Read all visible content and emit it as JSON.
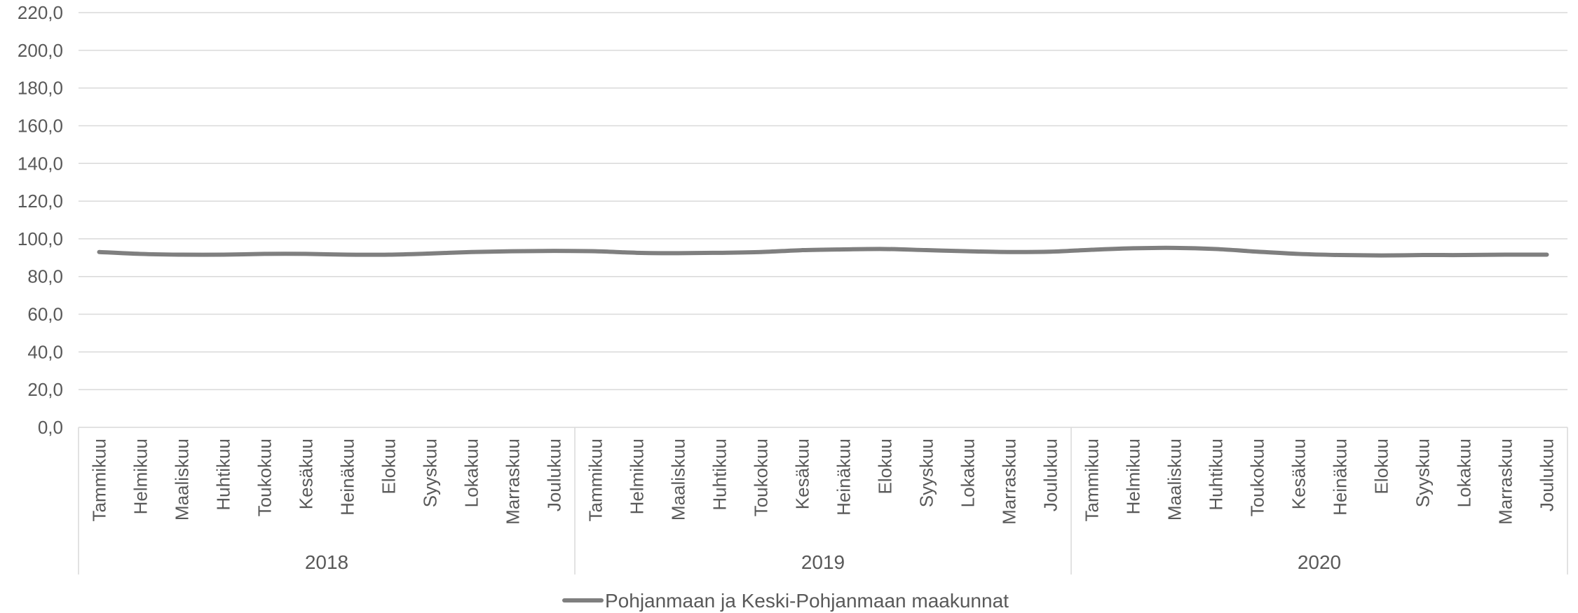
{
  "chart_data": {
    "type": "line",
    "title": "",
    "xlabel": "",
    "ylabel": "",
    "ylim": [
      0,
      220
    ],
    "y_ticks": [
      "0,0",
      "20,0",
      "40,0",
      "60,0",
      "80,0",
      "100,0",
      "120,0",
      "140,0",
      "160,0",
      "180,0",
      "200,0",
      "220,0"
    ],
    "y_tick_values": [
      0,
      20,
      40,
      60,
      80,
      100,
      120,
      140,
      160,
      180,
      200,
      220
    ],
    "grid": true,
    "legend_position": "bottom",
    "groups": [
      {
        "label": "2018",
        "months": [
          "Tammikuu",
          "Helmikuu",
          "Maaliskuu",
          "Huhtikuu",
          "Toukokuu",
          "Kesäkuu",
          "Heinäkuu",
          "Elokuu",
          "Syyskuu",
          "Lokakuu",
          "Marraskuu",
          "Joulukuu"
        ]
      },
      {
        "label": "2019",
        "months": [
          "Tammikuu",
          "Helmikuu",
          "Maaliskuu",
          "Huhtikuu",
          "Toukokuu",
          "Kesäkuu",
          "Heinäkuu",
          "Elokuu",
          "Syyskuu",
          "Lokakuu",
          "Marraskuu",
          "Joulukuu"
        ]
      },
      {
        "label": "2020",
        "months": [
          "Tammikuu",
          "Helmikuu",
          "Maaliskuu",
          "Huhtikuu",
          "Toukokuu",
          "Kesäkuu",
          "Heinäkuu",
          "Elokuu",
          "Syyskuu",
          "Lokakuu",
          "Marraskuu",
          "Joulukuu"
        ]
      }
    ],
    "series": [
      {
        "name": "Pohjanmaan ja Keski-Pohjanmaan maakunnat",
        "color": "#7f7f7f",
        "values": [
          93.0,
          92.0,
          91.6,
          91.6,
          92.0,
          92.0,
          91.6,
          91.6,
          92.2,
          93.0,
          93.4,
          93.6,
          93.4,
          92.6,
          92.4,
          92.6,
          93.0,
          94.0,
          94.4,
          94.6,
          94.0,
          93.4,
          93.0,
          93.2,
          94.2,
          95.0,
          95.2,
          94.6,
          93.2,
          92.0,
          91.4,
          91.2,
          91.4,
          91.4,
          91.6,
          91.6
        ]
      }
    ]
  }
}
